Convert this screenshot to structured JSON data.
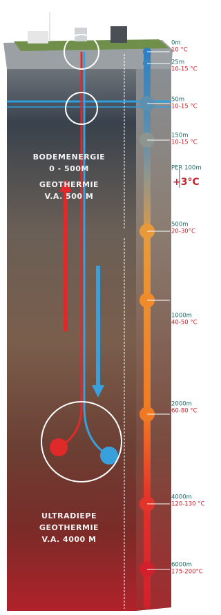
{
  "zones": [
    {
      "lines": [
        "BODEMENERGIE",
        "0 - 500M"
      ]
    },
    {
      "lines": [
        "GEOTHERMIE",
        "V.A. 500 M"
      ]
    },
    {
      "lines": [
        "ULTRADIEPE",
        "GEOTHERMIE",
        "V.A. 4000 M"
      ]
    }
  ],
  "depths": [
    {
      "depth": "0m",
      "temp": "10 °C"
    },
    {
      "depth": "25m",
      "temp": "10-15 °C"
    },
    {
      "depth": "50m",
      "temp": "10-15 °C"
    },
    {
      "depth": "150m",
      "temp": "10-15 °C"
    },
    {
      "depth": "500m",
      "temp": "20-30°C"
    },
    {
      "depth": "1000m",
      "temp": "40-50 °C"
    },
    {
      "depth": "2000m",
      "temp": "60-80 °C"
    },
    {
      "depth": "4000m",
      "temp": "120-130 °C"
    },
    {
      "depth": "6000m",
      "temp": "175-200°C"
    }
  ],
  "gradient": {
    "label": "PER 100m",
    "value": "+3°C"
  }
}
